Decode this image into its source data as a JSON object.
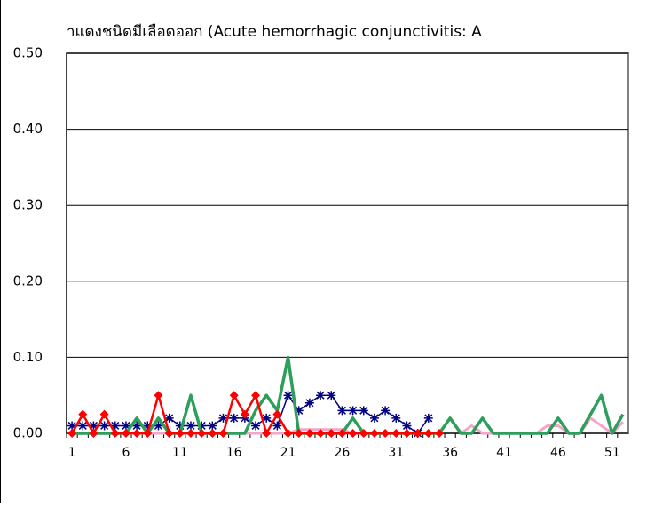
{
  "chart_data": {
    "type": "line",
    "title": "าแดงชนิดมีเลือดออก (Acute hemorrhagic conjunctivitis: A",
    "categories": [
      1,
      null,
      null,
      null,
      null,
      6,
      null,
      null,
      null,
      null,
      11,
      null,
      null,
      null,
      null,
      16,
      null,
      null,
      null,
      null,
      21,
      null,
      null,
      null,
      null,
      26,
      null,
      null,
      null,
      null,
      31,
      null,
      null,
      null,
      null,
      36,
      null,
      null,
      null,
      null,
      41,
      null,
      null,
      null,
      null,
      46,
      null,
      null,
      null,
      null,
      51,
      null
    ],
    "ylim": [
      0,
      0.5
    ],
    "yticks": [
      {
        "value": 0,
        "label": "0.00"
      },
      {
        "value": 0.1,
        "label": "0.10"
      },
      {
        "value": 0.2,
        "label": "0.20"
      },
      {
        "value": 0.3,
        "label": "0.30"
      },
      {
        "value": 0.4,
        "label": "0.40"
      },
      {
        "value": 0.5,
        "label": "0.50"
      }
    ],
    "grid": true,
    "series": [
      {
        "color": "#f4a6c8",
        "marker": "none",
        "width": 3,
        "values": [
          0,
          0,
          0,
          0,
          0,
          0,
          0,
          0,
          0,
          0,
          0,
          0,
          0,
          0,
          0,
          0,
          0,
          0,
          0,
          0,
          0,
          0.005,
          0.005,
          0.005,
          0.005,
          0.005,
          0,
          0,
          0,
          0,
          0,
          0,
          0,
          0,
          0,
          0.02,
          0,
          0.01,
          0,
          0,
          0,
          0,
          0,
          0,
          0.01,
          0.01,
          0,
          0,
          0.02,
          0.01,
          0,
          0.015
        ]
      },
      {
        "color": "#000080",
        "marker": "asterisk",
        "width": 1.5,
        "values": [
          0.01,
          0.01,
          0.01,
          0.01,
          0.01,
          0.01,
          0.01,
          0.01,
          0.01,
          0.02,
          0.01,
          0.01,
          0.01,
          0.01,
          0.02,
          0.02,
          0.02,
          0.01,
          0.02,
          0.01,
          0.05,
          0.03,
          0.04,
          0.05,
          0.05,
          0.03,
          0.03,
          0.03,
          0.02,
          0.03,
          0.02,
          0.01,
          0,
          0.02,
          null,
          null,
          null,
          null,
          null,
          null,
          null,
          null,
          null,
          null,
          null,
          null,
          null,
          null,
          null,
          null,
          null,
          null
        ]
      },
      {
        "color": "#2e9e5b",
        "marker": "none",
        "width": 3.5,
        "values": [
          0,
          0,
          0,
          0,
          0,
          0,
          0.02,
          0,
          0.02,
          0,
          0,
          0.05,
          0,
          0,
          0,
          0,
          0,
          0.03,
          0.05,
          0.03,
          0.1,
          0,
          0,
          0,
          0,
          0,
          0.02,
          0,
          0,
          0,
          0,
          0,
          0,
          0,
          0,
          0.02,
          0,
          0,
          0.02,
          0,
          0,
          0,
          0,
          0,
          0,
          0.02,
          0,
          0,
          0.025,
          0.05,
          0,
          0.025
        ]
      },
      {
        "color": "#ff0000",
        "marker": "diamond",
        "width": 2.5,
        "values": [
          0,
          0.025,
          0,
          0.025,
          0,
          0,
          0,
          0,
          0.05,
          0,
          0,
          0,
          0,
          0,
          0,
          0.05,
          0.025,
          0.05,
          0,
          0.025,
          0,
          0,
          0,
          0,
          0,
          0,
          0,
          0,
          0,
          0,
          0,
          0,
          0,
          0,
          0,
          null,
          null,
          null,
          null,
          null,
          null,
          null,
          null,
          null,
          null,
          null,
          null,
          null,
          null,
          null,
          null,
          null
        ]
      }
    ]
  }
}
